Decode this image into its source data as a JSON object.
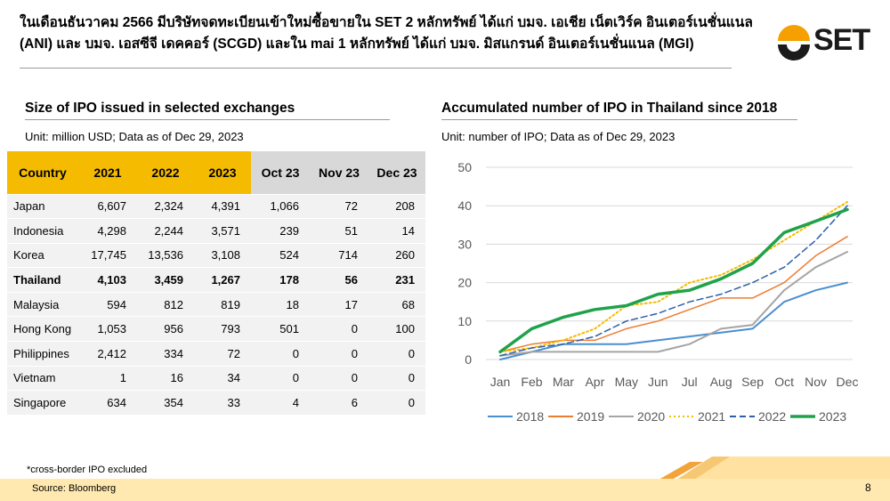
{
  "header": {
    "title": "ในเดือนธันวาคม 2566 มีบริษัทจดทะเบียนเข้าใหม่ซื้อขายใน SET 2 หลักทรัพย์ ได้แก่ บมจ. เอเชีย เน็ตเวิร์ค อินเตอร์เนชั่นแนล (ANI) และ บมจ. เอสซีจี เดคคอร์ (SCGD) และใน mai 1 หลักทรัพย์ ได้แก่ บมจ. มิสแกรนด์ อินเตอร์เนชั่นแนล (MGI)",
    "logo_text": "SET"
  },
  "table_section": {
    "heading": "Size of IPO issued in selected exchanges",
    "unit": "Unit: million USD; Data as of Dec 29, 2023",
    "columns": [
      "Country",
      "2021",
      "2022",
      "2023",
      "Oct 23",
      "Nov 23",
      "Dec 23"
    ],
    "rows": [
      {
        "country": "Japan",
        "values": [
          "6,607",
          "2,324",
          "4,391",
          "1,066",
          "72",
          "208"
        ],
        "highlight": false
      },
      {
        "country": "Indonesia",
        "values": [
          "4,298",
          "2,244",
          "3,571",
          "239",
          "51",
          "14"
        ],
        "highlight": false
      },
      {
        "country": "Korea",
        "values": [
          "17,745",
          "13,536",
          "3,108",
          "524",
          "714",
          "260"
        ],
        "highlight": false
      },
      {
        "country": "Thailand",
        "values": [
          "4,103",
          "3,459",
          "1,267",
          "178",
          "56",
          "231"
        ],
        "highlight": true
      },
      {
        "country": "Malaysia",
        "values": [
          "594",
          "812",
          "819",
          "18",
          "17",
          "68"
        ],
        "highlight": false
      },
      {
        "country": "Hong Kong",
        "values": [
          "1,053",
          "956",
          "793",
          "501",
          "0",
          "100"
        ],
        "highlight": false
      },
      {
        "country": "Philippines",
        "values": [
          "2,412",
          "334",
          "72",
          "0",
          "0",
          "0"
        ],
        "highlight": false
      },
      {
        "country": "Vietnam",
        "values": [
          "1",
          "16",
          "34",
          "0",
          "0",
          "0"
        ],
        "highlight": false
      },
      {
        "country": "Singapore",
        "values": [
          "634",
          "354",
          "33",
          "4",
          "6",
          "0"
        ],
        "highlight": false
      }
    ]
  },
  "chart_section": {
    "heading": "Accumulated number of IPO in Thailand since 2018",
    "unit": "Unit: number of IPO; Data as of Dec 29, 2023"
  },
  "chart_data": {
    "type": "line",
    "title": "Accumulated number of IPO in Thailand since 2018",
    "xlabel": "",
    "ylabel": "",
    "x": [
      "Jan",
      "Feb",
      "Mar",
      "Apr",
      "May",
      "Jun",
      "Jul",
      "Aug",
      "Sep",
      "Oct",
      "Nov",
      "Dec"
    ],
    "ylim": [
      0,
      50
    ],
    "yticks": [
      0,
      10,
      20,
      30,
      40,
      50
    ],
    "grid": true,
    "legend": "bottom",
    "series": [
      {
        "name": "2018",
        "color": "#4a8fd0",
        "dash": "solid",
        "width": 2,
        "values": [
          0,
          2,
          4,
          4,
          4,
          5,
          6,
          7,
          8,
          15,
          18,
          20
        ]
      },
      {
        "name": "2019",
        "color": "#ed7d31",
        "dash": "solid",
        "width": 1.5,
        "values": [
          2,
          4,
          5,
          5,
          8,
          10,
          13,
          16,
          16,
          20,
          27,
          32
        ]
      },
      {
        "name": "2020",
        "color": "#a5a5a5",
        "dash": "solid",
        "width": 2,
        "values": [
          1,
          2,
          2,
          2,
          2,
          2,
          4,
          8,
          9,
          18,
          24,
          28
        ]
      },
      {
        "name": "2021",
        "color": "#f5bb00",
        "dash": "dot",
        "width": 2,
        "values": [
          2,
          3,
          5,
          8,
          14,
          15,
          20,
          22,
          26,
          31,
          36,
          41
        ]
      },
      {
        "name": "2022",
        "color": "#2e5fa8",
        "dash": "dash",
        "width": 1.5,
        "values": [
          1,
          3,
          4,
          6,
          10,
          12,
          15,
          17,
          20,
          24,
          31,
          40
        ]
      },
      {
        "name": "2023",
        "color": "#1fa24a",
        "dash": "solid",
        "width": 3.5,
        "values": [
          2,
          8,
          11,
          13,
          14,
          17,
          18,
          21,
          25,
          33,
          36,
          39
        ]
      }
    ]
  },
  "footer": {
    "note": "*cross-border IPO excluded",
    "source": "Source:  Bloomberg",
    "page": "8"
  }
}
